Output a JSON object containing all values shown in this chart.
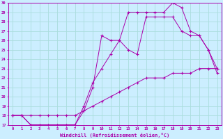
{
  "xlabel": "Windchill (Refroidissement éolien,°C)",
  "bg_color": "#cceeff",
  "grid_color": "#aadddd",
  "line_color": "#aa00aa",
  "xlim": [
    -0.5,
    23.5
  ],
  "ylim": [
    17,
    30
  ],
  "xticks": [
    0,
    1,
    2,
    3,
    4,
    5,
    6,
    7,
    8,
    9,
    10,
    11,
    12,
    13,
    14,
    15,
    16,
    17,
    18,
    19,
    20,
    21,
    22,
    23
  ],
  "yticks": [
    17,
    18,
    19,
    20,
    21,
    22,
    23,
    24,
    25,
    26,
    27,
    28,
    29,
    30
  ],
  "line1_x": [
    0,
    1,
    2,
    3,
    4,
    5,
    6,
    7,
    8,
    9,
    10,
    11,
    12,
    13,
    14,
    15,
    16,
    17,
    18,
    19,
    20,
    21,
    22,
    23
  ],
  "line1_y": [
    18,
    18,
    18,
    18,
    18,
    18,
    18,
    18,
    18.5,
    19,
    19.5,
    20,
    20.5,
    21,
    21.5,
    22,
    22,
    22,
    22.5,
    22.5,
    22.5,
    23,
    23,
    23
  ],
  "line2_x": [
    0,
    1,
    2,
    3,
    4,
    5,
    6,
    7,
    8,
    9,
    10,
    11,
    12,
    13,
    14,
    15,
    16,
    17,
    18,
    19,
    20,
    21,
    22,
    23
  ],
  "line2_y": [
    18,
    18,
    17,
    17,
    17,
    17,
    17,
    17,
    18.5,
    21,
    26.5,
    26,
    26,
    25,
    24.5,
    28.5,
    28.5,
    28.5,
    28.5,
    27,
    26.5,
    26.5,
    25,
    22.5
  ],
  "line3_x": [
    0,
    1,
    2,
    3,
    4,
    5,
    6,
    7,
    8,
    9,
    10,
    11,
    12,
    13,
    14,
    15,
    16,
    17,
    18,
    19,
    20,
    21,
    22,
    23
  ],
  "line3_y": [
    18,
    18,
    17,
    17,
    17,
    17,
    17,
    17,
    19,
    21.5,
    23,
    24.5,
    26,
    29,
    29,
    29,
    29,
    29,
    30,
    29.5,
    27,
    26.5,
    25,
    23
  ]
}
